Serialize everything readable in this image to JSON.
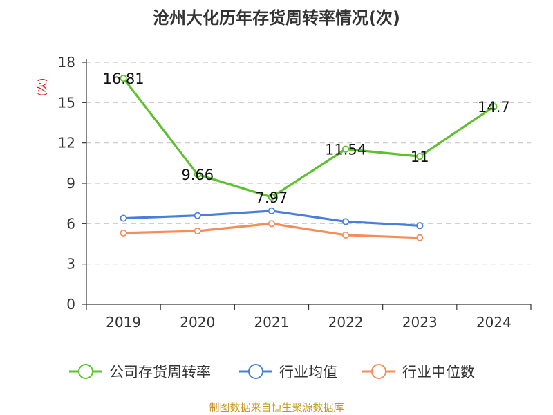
{
  "title": "沧州大化历年存货周转率情况(次)",
  "source": "制图数据来自恒生聚源数据库",
  "chart_data": {
    "type": "line",
    "title": "沧州大化历年存货周转率情况(次)",
    "ylabel": "(次)",
    "xlabel": "",
    "categories": [
      "2019",
      "2020",
      "2021",
      "2022",
      "2023",
      "2024"
    ],
    "ylim": [
      0,
      18
    ],
    "yticks": [
      "0",
      "3",
      "6",
      "9",
      "12",
      "15",
      "18"
    ],
    "grid": true,
    "legend_position": "bottom",
    "series": [
      {
        "name": "公司存货周转率",
        "color": "#5cc12c",
        "values": [
          16.81,
          9.66,
          7.97,
          11.54,
          11,
          14.7
        ],
        "labels": [
          "16.81",
          "9.66",
          "7.97",
          "11.54",
          "11",
          "14.7"
        ]
      },
      {
        "name": "行业均值",
        "color": "#4a7fd9",
        "values": [
          6.4,
          6.6,
          6.95,
          6.15,
          5.85,
          null
        ],
        "labels": []
      },
      {
        "name": "行业中位数",
        "color": "#f58d5a",
        "values": [
          5.3,
          5.45,
          6.0,
          5.15,
          4.95,
          null
        ],
        "labels": []
      }
    ]
  }
}
